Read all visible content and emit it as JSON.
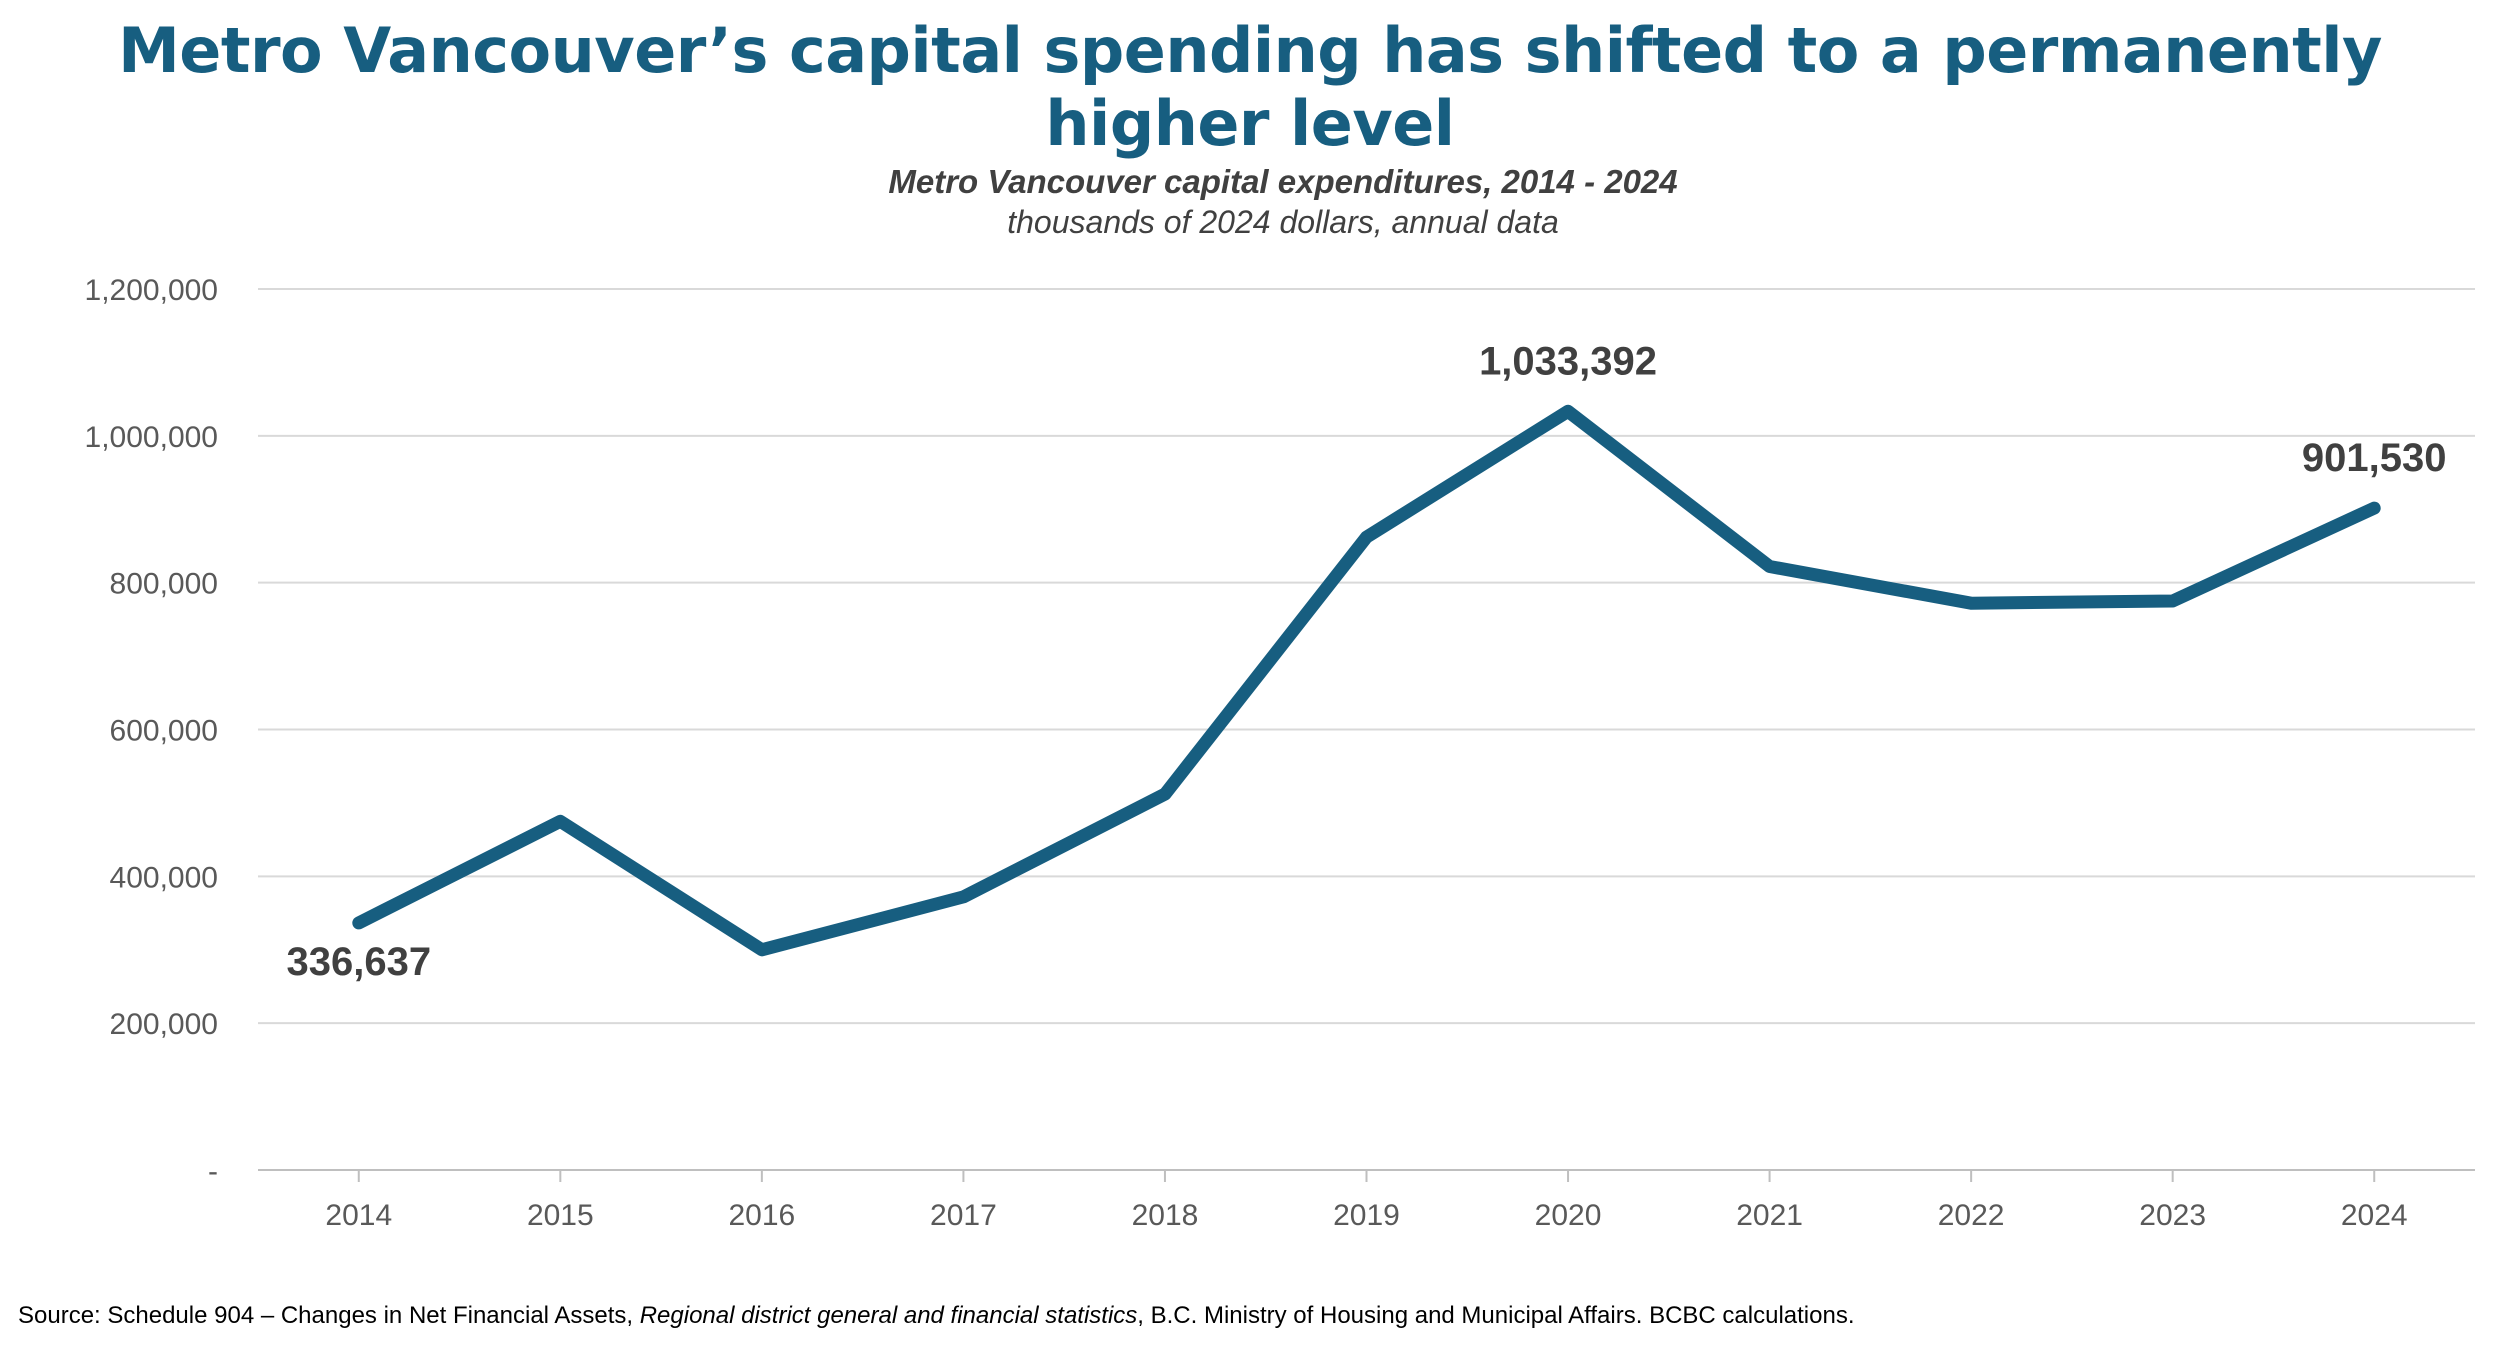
{
  "headline": "Metro Vancouver’s capital spending has shifted to a permanently higher level",
  "source": {
    "prefix": "Source: Schedule 904 – Changes in Net Financial Assets, ",
    "italic": "Regional district general and financial statistics",
    "suffix": ", B.C. Ministry of Housing and  Municipal Affairs. BCBC calculations."
  },
  "colors": {
    "headline": "#175e80",
    "line": "#175e80",
    "grid": "#d9d9d9",
    "axis_text": "#595959",
    "label": "#404040"
  },
  "chart_data": {
    "type": "line",
    "title": "Metro Vancouver capital expenditures, 2014 - 2024",
    "subtitle": "thousands of 2024 dollars, annual data",
    "xlabel": "",
    "ylabel": "",
    "ylim": [
      0,
      1200000
    ],
    "grid": true,
    "categories": [
      "2014",
      "2015",
      "2016",
      "2017",
      "2018",
      "2019",
      "2020",
      "2021",
      "2022",
      "2023",
      "2024"
    ],
    "y_ticks": [
      {
        "value": 0,
        "label": "-"
      },
      {
        "value": 200000,
        "label": "200,000"
      },
      {
        "value": 400000,
        "label": "400,000"
      },
      {
        "value": 600000,
        "label": "600,000"
      },
      {
        "value": 800000,
        "label": "800,000"
      },
      {
        "value": 1000000,
        "label": "1,000,000"
      },
      {
        "value": 1200000,
        "label": "1,200,000"
      }
    ],
    "series": [
      {
        "name": "Metro Vancouver capital expenditures",
        "values": [
          336637,
          475000,
          300000,
          372000,
          512000,
          862000,
          1033392,
          822000,
          772000,
          775000,
          901530
        ]
      }
    ],
    "data_labels": [
      {
        "index": 0,
        "text": "336,637",
        "position": "below"
      },
      {
        "index": 6,
        "text": "1,033,392",
        "position": "above"
      },
      {
        "index": 10,
        "text": "901,530",
        "position": "above"
      }
    ]
  }
}
